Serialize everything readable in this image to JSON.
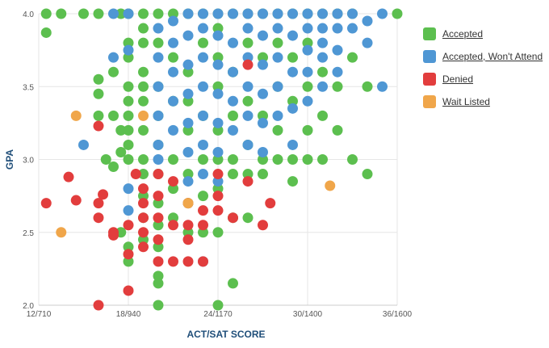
{
  "chart_data": {
    "type": "scatter",
    "xlabel": "ACT/SAT SCORE",
    "ylabel": "GPA",
    "xlim": [
      12,
      36
    ],
    "ylim": [
      2.0,
      4.0
    ],
    "x_ticks": [
      {
        "value": 12,
        "label": "12/710"
      },
      {
        "value": 18,
        "label": "18/940"
      },
      {
        "value": 24,
        "label": "24/1170"
      },
      {
        "value": 30,
        "label": "30/1400"
      },
      {
        "value": 36,
        "label": "36/1600"
      }
    ],
    "y_ticks": [
      {
        "value": 2.0,
        "label": "2.0"
      },
      {
        "value": 2.5,
        "label": "2.5"
      },
      {
        "value": 3.0,
        "label": "3.0"
      },
      {
        "value": 3.5,
        "label": "3.5"
      },
      {
        "value": 4.0,
        "label": "4.0"
      }
    ],
    "grid": true,
    "legend_position": "right",
    "series": [
      {
        "name": "Accepted",
        "color": "#5cbf4f",
        "points": [
          [
            12.5,
            4.0
          ],
          [
            12.5,
            3.87
          ],
          [
            13.5,
            4.0
          ],
          [
            15,
            4.0
          ],
          [
            16,
            4.0
          ],
          [
            16,
            3.55
          ],
          [
            16,
            3.45
          ],
          [
            16,
            3.3
          ],
          [
            16.5,
            3.0
          ],
          [
            17,
            3.6
          ],
          [
            17,
            3.3
          ],
          [
            17.5,
            4.0
          ],
          [
            17.5,
            3.2
          ],
          [
            17.5,
            3.05
          ],
          [
            17.5,
            2.5
          ],
          [
            17,
            2.95
          ],
          [
            18,
            4.0
          ],
          [
            18,
            3.8
          ],
          [
            18,
            3.7
          ],
          [
            18,
            3.5
          ],
          [
            18,
            3.4
          ],
          [
            18,
            3.3
          ],
          [
            18,
            3.2
          ],
          [
            18,
            3.1
          ],
          [
            18,
            3.0
          ],
          [
            18,
            2.4
          ],
          [
            18,
            2.3
          ],
          [
            19,
            4.0
          ],
          [
            19,
            3.9
          ],
          [
            19,
            3.8
          ],
          [
            19,
            3.6
          ],
          [
            19,
            3.5
          ],
          [
            19,
            3.4
          ],
          [
            19,
            3.2
          ],
          [
            19,
            3.0
          ],
          [
            19,
            2.9
          ],
          [
            19,
            2.75
          ],
          [
            19,
            2.6
          ],
          [
            19,
            2.45
          ],
          [
            20,
            4.0
          ],
          [
            20,
            3.8
          ],
          [
            20,
            3.5
          ],
          [
            20,
            3.3
          ],
          [
            20,
            3.1
          ],
          [
            20,
            2.9
          ],
          [
            20,
            2.7
          ],
          [
            20,
            2.55
          ],
          [
            20,
            2.4
          ],
          [
            20,
            2.2
          ],
          [
            20,
            2.15
          ],
          [
            20,
            2.0
          ],
          [
            21,
            4.0
          ],
          [
            21,
            3.7
          ],
          [
            21,
            3.4
          ],
          [
            21,
            3.0
          ],
          [
            21,
            2.8
          ],
          [
            21,
            2.6
          ],
          [
            22,
            4.0
          ],
          [
            22,
            3.6
          ],
          [
            22,
            3.4
          ],
          [
            22,
            3.2
          ],
          [
            22,
            2.9
          ],
          [
            22,
            2.7
          ],
          [
            22,
            2.5
          ],
          [
            23,
            4.0
          ],
          [
            23,
            3.8
          ],
          [
            23,
            3.3
          ],
          [
            23,
            3.0
          ],
          [
            23,
            2.75
          ],
          [
            23,
            2.5
          ],
          [
            24,
            4.0
          ],
          [
            24,
            3.9
          ],
          [
            24,
            3.7
          ],
          [
            24,
            3.5
          ],
          [
            24,
            3.2
          ],
          [
            24,
            3.0
          ],
          [
            24,
            2.8
          ],
          [
            24,
            2.5
          ],
          [
            24,
            2.0
          ],
          [
            25,
            4.0
          ],
          [
            25,
            3.6
          ],
          [
            25,
            3.3
          ],
          [
            25,
            3.0
          ],
          [
            25,
            2.9
          ],
          [
            25,
            2.6
          ],
          [
            25,
            2.15
          ],
          [
            26,
            4.0
          ],
          [
            26,
            3.8
          ],
          [
            26,
            3.4
          ],
          [
            26,
            3.1
          ],
          [
            26,
            2.9
          ],
          [
            26,
            2.6
          ],
          [
            27,
            4.0
          ],
          [
            27,
            3.7
          ],
          [
            27,
            3.3
          ],
          [
            27,
            3.0
          ],
          [
            27,
            2.9
          ],
          [
            28,
            4.0
          ],
          [
            28,
            3.8
          ],
          [
            28,
            3.5
          ],
          [
            28,
            3.2
          ],
          [
            28,
            3.0
          ],
          [
            29,
            4.0
          ],
          [
            29,
            3.7
          ],
          [
            29,
            3.4
          ],
          [
            29,
            3.0
          ],
          [
            29,
            2.85
          ],
          [
            30,
            4.0
          ],
          [
            30,
            3.8
          ],
          [
            30,
            3.5
          ],
          [
            30,
            3.2
          ],
          [
            30,
            3.0
          ],
          [
            31,
            4.0
          ],
          [
            31,
            3.6
          ],
          [
            31,
            3.3
          ],
          [
            31,
            3.0
          ],
          [
            32,
            4.0
          ],
          [
            32,
            3.5
          ],
          [
            32,
            3.2
          ],
          [
            33,
            4.0
          ],
          [
            33,
            3.7
          ],
          [
            33,
            3.0
          ],
          [
            34,
            3.5
          ],
          [
            34,
            2.9
          ],
          [
            36,
            4.0
          ]
        ]
      },
      {
        "name": "Accepted, Won't Attend",
        "color": "#4f97d4",
        "points": [
          [
            15,
            3.1
          ],
          [
            17,
            4.0
          ],
          [
            17,
            3.7
          ],
          [
            18,
            4.0
          ],
          [
            18,
            3.75
          ],
          [
            18,
            2.8
          ],
          [
            18,
            2.65
          ],
          [
            20,
            3.9
          ],
          [
            20,
            3.7
          ],
          [
            20,
            3.5
          ],
          [
            20,
            3.3
          ],
          [
            20,
            3.1
          ],
          [
            20,
            3.0
          ],
          [
            21,
            3.95
          ],
          [
            21,
            3.8
          ],
          [
            21,
            3.6
          ],
          [
            21,
            3.4
          ],
          [
            21,
            3.2
          ],
          [
            22,
            4.0
          ],
          [
            22,
            3.85
          ],
          [
            22,
            3.65
          ],
          [
            22,
            3.45
          ],
          [
            22,
            3.25
          ],
          [
            22,
            3.05
          ],
          [
            22,
            2.85
          ],
          [
            23,
            4.0
          ],
          [
            23,
            3.9
          ],
          [
            23,
            3.7
          ],
          [
            23,
            3.5
          ],
          [
            23,
            3.3
          ],
          [
            23,
            3.1
          ],
          [
            23,
            2.9
          ],
          [
            23,
            2.3
          ],
          [
            24,
            4.0
          ],
          [
            24,
            3.85
          ],
          [
            24,
            3.65
          ],
          [
            24,
            3.45
          ],
          [
            24,
            3.25
          ],
          [
            24,
            3.05
          ],
          [
            24,
            2.85
          ],
          [
            25,
            4.0
          ],
          [
            25,
            3.8
          ],
          [
            25,
            3.6
          ],
          [
            25,
            3.4
          ],
          [
            25,
            3.2
          ],
          [
            26,
            4.0
          ],
          [
            26,
            3.9
          ],
          [
            26,
            3.7
          ],
          [
            26,
            3.5
          ],
          [
            26,
            3.3
          ],
          [
            26,
            3.1
          ],
          [
            27,
            4.0
          ],
          [
            27,
            3.85
          ],
          [
            27,
            3.65
          ],
          [
            27,
            3.45
          ],
          [
            27,
            3.25
          ],
          [
            27,
            3.05
          ],
          [
            28,
            4.0
          ],
          [
            28,
            3.9
          ],
          [
            28,
            3.7
          ],
          [
            28,
            3.5
          ],
          [
            28,
            3.3
          ],
          [
            29,
            4.0
          ],
          [
            29,
            3.85
          ],
          [
            29,
            3.6
          ],
          [
            29,
            3.35
          ],
          [
            29,
            3.1
          ],
          [
            30,
            4.0
          ],
          [
            30,
            3.9
          ],
          [
            30,
            3.75
          ],
          [
            30,
            3.6
          ],
          [
            30,
            3.4
          ],
          [
            31,
            4.0
          ],
          [
            31,
            3.9
          ],
          [
            31,
            3.8
          ],
          [
            31,
            3.7
          ],
          [
            31,
            3.5
          ],
          [
            32,
            4.0
          ],
          [
            32,
            3.9
          ],
          [
            32,
            3.75
          ],
          [
            32,
            3.6
          ],
          [
            33,
            4.0
          ],
          [
            33,
            3.9
          ],
          [
            34,
            3.95
          ],
          [
            34,
            3.8
          ],
          [
            35,
            4.0
          ],
          [
            35,
            3.5
          ]
        ]
      },
      {
        "name": "Denied",
        "color": "#e23d3d",
        "points": [
          [
            12.5,
            2.7
          ],
          [
            14,
            2.88
          ],
          [
            14.5,
            2.72
          ],
          [
            16,
            3.23
          ],
          [
            16,
            2.7
          ],
          [
            16,
            2.6
          ],
          [
            16.3,
            2.76
          ],
          [
            16,
            2.0
          ],
          [
            17,
            2.5
          ],
          [
            17,
            2.48
          ],
          [
            18,
            2.35
          ],
          [
            18,
            2.1
          ],
          [
            18,
            2.55
          ],
          [
            18.5,
            2.9
          ],
          [
            19,
            2.8
          ],
          [
            19,
            2.7
          ],
          [
            19,
            2.6
          ],
          [
            19,
            2.5
          ],
          [
            19,
            2.4
          ],
          [
            20,
            2.9
          ],
          [
            20,
            2.75
          ],
          [
            20,
            2.6
          ],
          [
            20,
            2.45
          ],
          [
            20,
            2.3
          ],
          [
            21,
            2.85
          ],
          [
            21,
            2.55
          ],
          [
            21,
            2.3
          ],
          [
            22,
            2.7
          ],
          [
            22,
            2.55
          ],
          [
            22,
            2.45
          ],
          [
            22,
            2.3
          ],
          [
            23,
            2.65
          ],
          [
            23,
            2.55
          ],
          [
            23,
            2.3
          ],
          [
            24,
            2.9
          ],
          [
            24,
            2.75
          ],
          [
            24,
            2.65
          ],
          [
            25,
            2.6
          ],
          [
            26,
            2.85
          ],
          [
            26,
            3.65
          ],
          [
            27,
            2.55
          ],
          [
            27.5,
            2.7
          ]
        ]
      },
      {
        "name": "Wait Listed",
        "color": "#f0a64a",
        "points": [
          [
            14.5,
            3.3
          ],
          [
            13.5,
            2.5
          ],
          [
            19,
            3.3
          ],
          [
            22,
            2.7
          ],
          [
            31.5,
            2.82
          ]
        ]
      }
    ]
  }
}
